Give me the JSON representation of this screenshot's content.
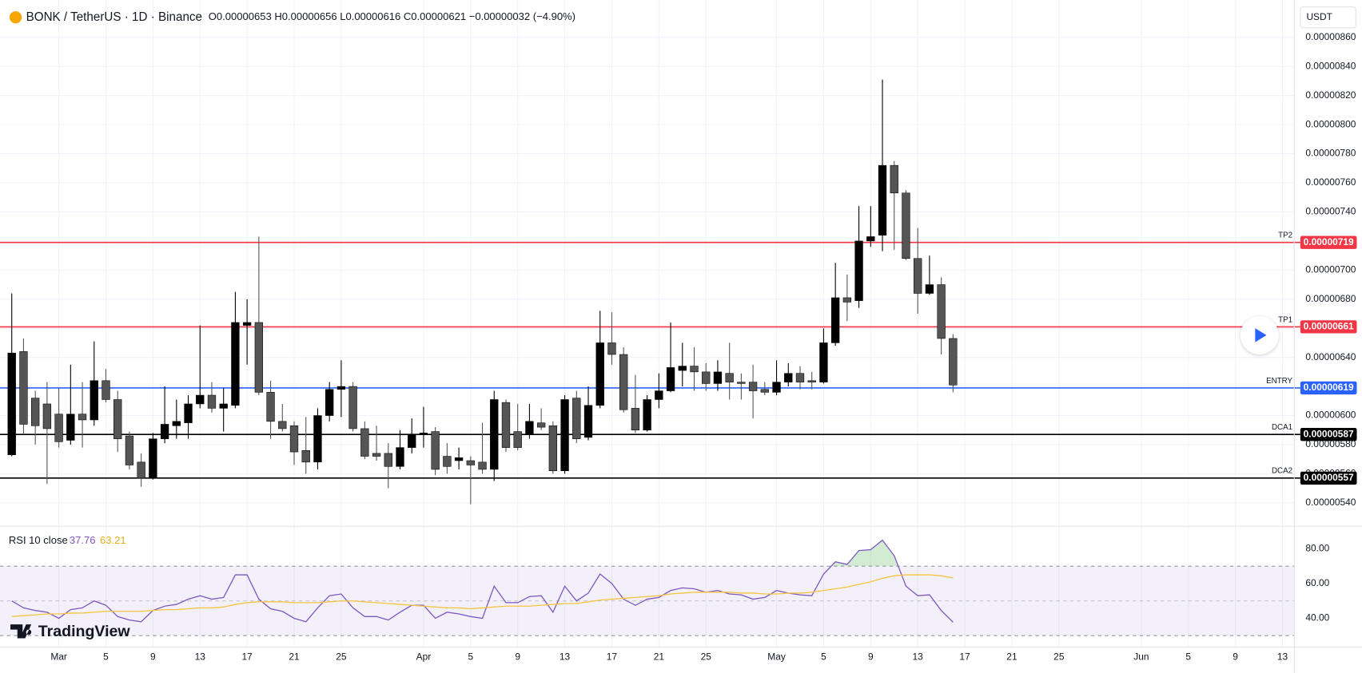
{
  "chart_data": {
    "type": "candlestick",
    "title": "BONK / TetherUS · 1D · Binance",
    "ohlc_summary": "O0.00000653 H0.00000656 L0.00000616 C0.00000621 −0.00000032 (−4.90%)",
    "currency": "USDT",
    "watermark": "TradingView",
    "up_color": "#000000",
    "down_color": "#555555",
    "grid": true,
    "x": [
      "02-25",
      "02-26",
      "02-27",
      "02-28",
      "03-01",
      "03-02",
      "03-03",
      "03-04",
      "03-05",
      "03-06",
      "03-07",
      "03-08",
      "03-09",
      "03-10",
      "03-11",
      "03-12",
      "03-13",
      "03-14",
      "03-15",
      "03-16",
      "03-17",
      "03-18",
      "03-19",
      "03-20",
      "03-21",
      "03-22",
      "03-23",
      "03-24",
      "03-25",
      "03-26",
      "03-27",
      "03-28",
      "03-29",
      "03-30",
      "03-31",
      "04-01",
      "04-02",
      "04-03",
      "04-04",
      "04-05",
      "04-06",
      "04-07",
      "04-08",
      "04-09",
      "04-10",
      "04-11",
      "04-12",
      "04-13",
      "04-14",
      "04-15",
      "04-16",
      "04-17",
      "04-18",
      "04-19",
      "04-20",
      "04-21",
      "04-22",
      "04-23",
      "04-24",
      "04-25",
      "04-26",
      "04-27",
      "04-28",
      "04-29",
      "04-30",
      "05-01",
      "05-02",
      "05-03",
      "05-04",
      "05-05",
      "05-06",
      "05-07",
      "05-08",
      "05-09",
      "05-10",
      "05-11",
      "05-12",
      "05-13",
      "05-14",
      "05-15",
      "05-16"
    ],
    "open": [
      5.73e-06,
      6.44e-06,
      6.12e-06,
      6.08e-06,
      6.01e-06,
      5.83e-06,
      6.01e-06,
      5.97e-06,
      6.24e-06,
      6.11e-06,
      5.86e-06,
      5.68e-06,
      5.57e-06,
      5.84e-06,
      5.93e-06,
      5.95e-06,
      6.08e-06,
      6.14e-06,
      6.05e-06,
      6.07e-06,
      6.62e-06,
      6.64e-06,
      6.16e-06,
      5.96e-06,
      5.93e-06,
      5.76e-06,
      5.68e-06,
      6e-06,
      6.18e-06,
      6.2e-06,
      5.91e-06,
      5.74e-06,
      5.74e-06,
      5.65e-06,
      5.78e-06,
      5.87e-06,
      5.89e-06,
      5.72e-06,
      5.69e-06,
      5.69e-06,
      5.68e-06,
      5.63e-06,
      6.09e-06,
      5.89e-06,
      5.87e-06,
      5.95e-06,
      5.93e-06,
      5.62e-06,
      6.12e-06,
      5.85e-06,
      6.07e-06,
      6.5e-06,
      6.42e-06,
      6.05e-06,
      5.9e-06,
      6.11e-06,
      6.17e-06,
      6.31e-06,
      6.34e-06,
      6.3e-06,
      6.22e-06,
      6.29e-06,
      6.23e-06,
      6.23e-06,
      6.18e-06,
      6.16e-06,
      6.23e-06,
      6.29e-06,
      6.24e-06,
      6.23e-06,
      6.5e-06,
      6.81e-06,
      6.79e-06,
      7.2e-06,
      7.24e-06,
      7.72e-06,
      7.53e-06,
      7.08e-06,
      6.84e-06,
      6.9e-06,
      6.53e-06
    ],
    "high": [
      6.84e-06,
      6.53e-06,
      6.17e-06,
      6.23e-06,
      6.19e-06,
      6.35e-06,
      6.23e-06,
      6.51e-06,
      6.32e-06,
      6.17e-06,
      5.89e-06,
      5.74e-06,
      5.88e-06,
      6.2e-06,
      6.11e-06,
      6.14e-06,
      6.62e-06,
      6.23e-06,
      6.19e-06,
      6.85e-06,
      6.8e-06,
      7.23e-06,
      6.24e-06,
      6.08e-06,
      5.96e-06,
      5.99e-06,
      6.05e-06,
      6.23e-06,
      6.38e-06,
      6.23e-06,
      5.96e-06,
      5.93e-06,
      5.81e-06,
      5.9e-06,
      5.98e-06,
      6.06e-06,
      5.92e-06,
      5.81e-06,
      5.78e-06,
      5.72e-06,
      5.95e-06,
      6.17e-06,
      6.11e-06,
      6.08e-06,
      6.08e-06,
      6.05e-06,
      5.96e-06,
      6.14e-06,
      6.17e-06,
      6.2e-06,
      6.72e-06,
      6.71e-06,
      6.47e-06,
      6.28e-06,
      6.14e-06,
      6.29e-06,
      6.64e-06,
      6.5e-06,
      6.47e-06,
      6.36e-06,
      6.38e-06,
      6.5e-06,
      6.29e-06,
      6.35e-06,
      6.23e-06,
      6.38e-06,
      6.36e-06,
      6.34e-06,
      6.3e-06,
      6.6e-06,
      7.05e-06,
      6.97e-06,
      7.44e-06,
      7.44e-06,
      8.31e-06,
      7.75e-06,
      7.55e-06,
      7.29e-06,
      7.1e-06,
      6.95e-06,
      6.56e-06
    ],
    "low": [
      5.72e-06,
      5.87e-06,
      5.8e-06,
      5.53e-06,
      5.78e-06,
      5.8e-06,
      5.78e-06,
      5.93e-06,
      6.09e-06,
      5.75e-06,
      5.63e-06,
      5.51e-06,
      5.56e-06,
      5.81e-06,
      5.84e-06,
      5.84e-06,
      6.05e-06,
      6.02e-06,
      5.89e-06,
      6.05e-06,
      6.35e-06,
      6.14e-06,
      5.84e-06,
      5.89e-06,
      5.66e-06,
      5.6e-06,
      5.63e-06,
      5.96e-06,
      5.99e-06,
      5.89e-06,
      5.7e-06,
      5.69e-06,
      5.5e-06,
      5.63e-06,
      5.74e-06,
      5.78e-06,
      5.59e-06,
      5.6e-06,
      5.63e-06,
      5.39e-06,
      5.6e-06,
      5.55e-06,
      5.75e-06,
      5.76e-06,
      5.84e-06,
      5.9e-06,
      5.6e-06,
      5.6e-06,
      5.81e-06,
      5.83e-06,
      6.05e-06,
      6.35e-06,
      6.02e-06,
      5.88e-06,
      5.89e-06,
      6.05e-06,
      6.16e-06,
      6.2e-06,
      6.17e-06,
      6.17e-06,
      6.17e-06,
      6.11e-06,
      6.11e-06,
      5.98e-06,
      6.14e-06,
      6.14e-06,
      6.2e-06,
      6.18e-06,
      6.18e-06,
      6.22e-06,
      6.48e-06,
      6.65e-06,
      6.74e-06,
      7.16e-06,
      7.13e-06,
      7.14e-06,
      7.07e-06,
      6.7e-06,
      6.83e-06,
      6.42e-06,
      6.16e-06
    ],
    "close": [
      6.43e-06,
      5.94e-06,
      5.93e-06,
      5.91e-06,
      5.82e-06,
      6.01e-06,
      5.97e-06,
      6.24e-06,
      6.11e-06,
      5.84e-06,
      5.66e-06,
      5.57e-06,
      5.84e-06,
      5.94e-06,
      5.96e-06,
      6.08e-06,
      6.14e-06,
      6.05e-06,
      6.08e-06,
      6.64e-06,
      6.64e-06,
      6.16e-06,
      5.96e-06,
      5.91e-06,
      5.75e-06,
      5.68e-06,
      6e-06,
      6.18e-06,
      6.2e-06,
      5.91e-06,
      5.72e-06,
      5.72e-06,
      5.65e-06,
      5.78e-06,
      5.87e-06,
      5.88e-06,
      5.63e-06,
      5.65e-06,
      5.71e-06,
      5.66e-06,
      5.63e-06,
      6.11e-06,
      5.78e-06,
      5.78e-06,
      5.96e-06,
      5.92e-06,
      5.62e-06,
      6.11e-06,
      5.84e-06,
      6.07e-06,
      6.5e-06,
      6.42e-06,
      6.04e-06,
      5.9e-06,
      6.11e-06,
      6.17e-06,
      6.33e-06,
      6.34e-06,
      6.3e-06,
      6.22e-06,
      6.3e-06,
      6.23e-06,
      6.22e-06,
      6.17e-06,
      6.16e-06,
      6.23e-06,
      6.29e-06,
      6.23e-06,
      6.23e-06,
      6.5e-06,
      6.81e-06,
      6.78e-06,
      7.2e-06,
      7.23e-06,
      7.72e-06,
      7.53e-06,
      7.08e-06,
      6.84e-06,
      6.9e-06,
      6.53e-06,
      6.21e-06
    ],
    "xlim": [
      "02-24",
      "06-14"
    ],
    "xticks": [
      {
        "value": "03-01",
        "label": "Mar"
      },
      {
        "value": "03-05",
        "label": "5"
      },
      {
        "value": "03-09",
        "label": "9"
      },
      {
        "value": "03-13",
        "label": "13"
      },
      {
        "value": "03-17",
        "label": "17"
      },
      {
        "value": "03-21",
        "label": "21"
      },
      {
        "value": "03-25",
        "label": "25"
      },
      {
        "value": "04-01",
        "label": "Apr"
      },
      {
        "value": "04-05",
        "label": "5"
      },
      {
        "value": "04-09",
        "label": "9"
      },
      {
        "value": "04-13",
        "label": "13"
      },
      {
        "value": "04-17",
        "label": "17"
      },
      {
        "value": "04-21",
        "label": "21"
      },
      {
        "value": "04-25",
        "label": "25"
      },
      {
        "value": "05-01",
        "label": "May"
      },
      {
        "value": "05-05",
        "label": "5"
      },
      {
        "value": "05-09",
        "label": "9"
      },
      {
        "value": "05-13",
        "label": "13"
      },
      {
        "value": "05-17",
        "label": "17"
      },
      {
        "value": "05-21",
        "label": "21"
      },
      {
        "value": "05-25",
        "label": "25"
      },
      {
        "value": "06-01",
        "label": "Jun"
      },
      {
        "value": "06-05",
        "label": "5"
      },
      {
        "value": "06-09",
        "label": "9"
      },
      {
        "value": "06-13",
        "label": "13"
      }
    ],
    "ylim": [
      5.245e-06,
      8.857e-06
    ],
    "yticks": [
      {
        "value": 5.4e-06,
        "label": "0.00000540"
      },
      {
        "value": 5.6e-06,
        "label": "0.00000560"
      },
      {
        "value": 5.8e-06,
        "label": "0.00000580"
      },
      {
        "value": 6e-06,
        "label": "0.00000600"
      },
      {
        "value": 6.2e-06,
        "label": "0.00000620"
      },
      {
        "value": 6.4e-06,
        "label": "0.00000640"
      },
      {
        "value": 6.6e-06,
        "label": "0.00000660"
      },
      {
        "value": 6.8e-06,
        "label": "0.00000680"
      },
      {
        "value": 7e-06,
        "label": "0.00000700"
      },
      {
        "value": 7.2e-06,
        "label": "0.00000720"
      },
      {
        "value": 7.4e-06,
        "label": "0.00000740"
      },
      {
        "value": 7.6e-06,
        "label": "0.00000760"
      },
      {
        "value": 7.8e-06,
        "label": "0.00000780"
      },
      {
        "value": 8e-06,
        "label": "0.00000800"
      },
      {
        "value": 8.2e-06,
        "label": "0.00000820"
      },
      {
        "value": 8.4e-06,
        "label": "0.00000840"
      },
      {
        "value": 8.6e-06,
        "label": "0.00000860"
      }
    ],
    "levels": [
      {
        "name": "TP2",
        "value": 7.19e-06,
        "label": "0.00000719",
        "color": "#f23645"
      },
      {
        "name": "TP1",
        "value": 6.61e-06,
        "label": "0.00000661",
        "color": "#f23645"
      },
      {
        "name": "ENTRY",
        "value": 6.19e-06,
        "label": "0.00000619",
        "color": "#2962ff"
      },
      {
        "name": "DCA1",
        "value": 5.87e-06,
        "label": "0.00000587",
        "color": "#000000"
      },
      {
        "name": "DCA2",
        "value": 5.57e-06,
        "label": "0.00000557",
        "color": "#000000"
      }
    ],
    "rsi": {
      "title": "RSI 10 close",
      "ylim": [
        23.5,
        92.5
      ],
      "yticks": [
        {
          "value": 40,
          "label": "40.00"
        },
        {
          "value": 60,
          "label": "60.00"
        },
        {
          "value": 80,
          "label": "80.00"
        }
      ],
      "upper_band": 70,
      "middle_band": 50,
      "lower_band": 30,
      "band_color": "#7e57c2",
      "series": [
        {
          "color": "#7e57c2",
          "values": [
            50,
            46,
            44.5,
            43.5,
            40,
            45,
            46,
            50,
            47.5,
            41,
            39,
            38,
            44.5,
            47,
            48,
            51,
            53,
            51,
            52,
            65,
            65,
            51,
            45.5,
            44,
            40,
            38,
            46,
            53,
            54,
            46,
            41,
            41,
            39,
            43.5,
            47.5,
            47.5,
            40,
            43.5,
            42.5,
            41,
            40,
            58.5,
            49,
            49,
            52.5,
            53,
            43.5,
            58.5,
            50,
            54.5,
            65.5,
            60,
            51,
            47.5,
            51,
            52,
            56,
            57.5,
            57,
            55,
            56,
            54,
            53.5,
            51,
            52,
            56,
            54.5,
            53.5,
            53,
            65.5,
            72.5,
            71,
            79,
            79.5,
            85,
            76,
            58.5,
            53,
            53.5,
            44.5,
            37.76
          ]
        },
        {
          "color": "#f5c542",
          "values": [
            41,
            41.5,
            42,
            42.5,
            42.5,
            43,
            43,
            43.5,
            44,
            44,
            44,
            44,
            44.5,
            45,
            45,
            45.5,
            46,
            46,
            46.5,
            48,
            49,
            49.5,
            49.5,
            49.5,
            49,
            49,
            49,
            49.5,
            50,
            50,
            49.5,
            49,
            48.5,
            48,
            47.5,
            47,
            46.5,
            46,
            46,
            45.5,
            46,
            46.5,
            47,
            47,
            47,
            47.5,
            48,
            48.5,
            48.5,
            49.5,
            50.5,
            51,
            51.5,
            52,
            52.5,
            53,
            54,
            54.5,
            55,
            55,
            55,
            55,
            54.5,
            54.5,
            54,
            54,
            54.5,
            54.5,
            55,
            56,
            57,
            58,
            59.5,
            61,
            63,
            64.5,
            65,
            65,
            65,
            64.5,
            63.21
          ]
        }
      ]
    }
  }
}
